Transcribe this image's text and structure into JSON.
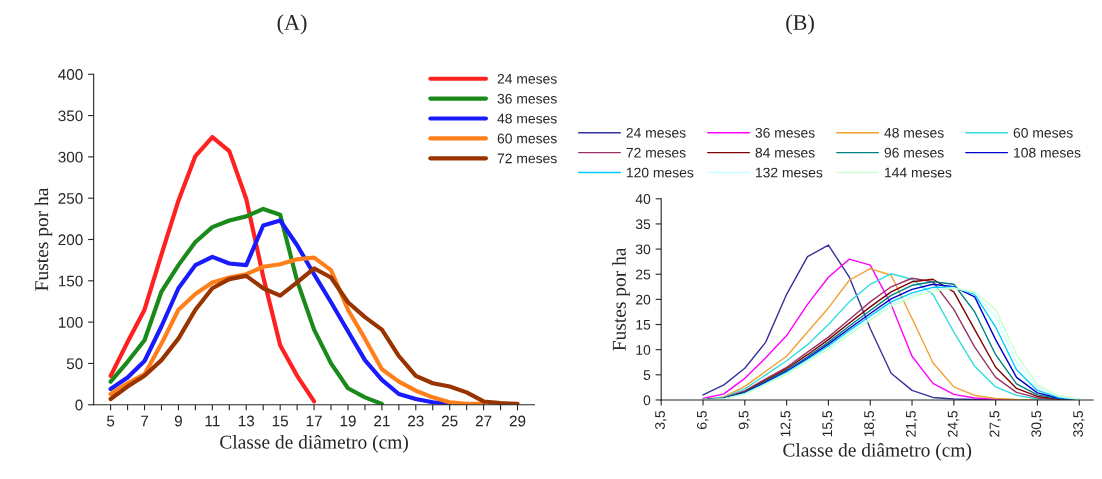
{
  "chart_data": [
    {
      "type": "line",
      "title": "(A)",
      "xlabel": "Classe de diâmetro (cm)",
      "ylabel": "Fustes por ha",
      "legend": "top right",
      "grid": false,
      "x": [
        5,
        6,
        7,
        8,
        9,
        10,
        11,
        12,
        13,
        14,
        15,
        16,
        17,
        18,
        19,
        20,
        21,
        22,
        23,
        24,
        25,
        26,
        27,
        28,
        29
      ],
      "xlim": [
        4,
        30
      ],
      "xticks": [
        5,
        {
          "value": 6,
          "label": null
        },
        7,
        {
          "value": 8,
          "label": null
        },
        9,
        {
          "value": 10,
          "label": null
        },
        11,
        {
          "value": 12,
          "label": null
        },
        13,
        {
          "value": 14,
          "label": null
        },
        15,
        {
          "value": 16,
          "label": null
        },
        17,
        {
          "value": 18,
          "label": null
        },
        19,
        {
          "value": 20,
          "label": null
        },
        21,
        {
          "value": 22,
          "label": null
        },
        23,
        {
          "value": 24,
          "label": null
        },
        25,
        {
          "value": 26,
          "label": null
        },
        27,
        {
          "value": 28,
          "label": null
        },
        29
      ],
      "ylim": [
        0,
        400
      ],
      "yticks": [
        0,
        50,
        100,
        150,
        200,
        250,
        300,
        350,
        400
      ],
      "series": [
        {
          "name": "24 meses",
          "color": "#ff2020",
          "values": [
            35,
            76,
            115,
            182,
            247,
            301,
            324,
            307,
            249,
            155,
            72,
            35,
            4,
            null,
            null,
            null,
            null,
            null,
            null,
            null,
            null,
            null,
            null,
            null,
            null
          ]
        },
        {
          "name": "36 meses",
          "color": "#1a8a1a",
          "values": [
            28,
            52,
            78,
            137,
            169,
            197,
            215,
            223,
            228,
            237,
            230,
            150,
            91,
            50,
            20,
            9,
            1,
            null,
            null,
            null,
            null,
            null,
            null,
            null,
            null
          ]
        },
        {
          "name": "48 meses",
          "color": "#1a1aff",
          "values": [
            19,
            33,
            53,
            95,
            141,
            169,
            179,
            171,
            169,
            217,
            223,
            193,
            158,
            124,
            89,
            54,
            30,
            13,
            7,
            3,
            1,
            null,
            null,
            null,
            null
          ]
        },
        {
          "name": "60 meses",
          "color": "#ff7f1a",
          "values": [
            13,
            26,
            37,
            74,
            115,
            134,
            148,
            154,
            158,
            167,
            170,
            176,
            178,
            163,
            115,
            80,
            43,
            28,
            17,
            9,
            3,
            1,
            1,
            null,
            null
          ]
        },
        {
          "name": "72 meses",
          "color": "#993300",
          "values": [
            7,
            22,
            35,
            54,
            80,
            115,
            141,
            152,
            156,
            141,
            132,
            148,
            165,
            154,
            124,
            106,
            91,
            59,
            35,
            26,
            22,
            15,
            4,
            2,
            1
          ]
        }
      ]
    },
    {
      "type": "line",
      "title": "(B)",
      "xlabel": "Classe de diâmetro (cm)",
      "ylabel": "Fustes por ha",
      "legend": "top",
      "grid": false,
      "x": [
        6.5,
        8,
        9.5,
        11,
        12.5,
        14,
        15.5,
        17,
        18.5,
        20,
        21.5,
        23,
        24.5,
        26,
        27.5,
        29,
        30.5,
        32,
        33.5
      ],
      "xlim": [
        3.5,
        34.5
      ],
      "xticks": [
        {
          "value": 3.5,
          "label": "3,5"
        },
        {
          "value": 6.5,
          "label": "6,5"
        },
        {
          "value": 9.5,
          "label": "9,5"
        },
        {
          "value": 12.5,
          "label": "12,5"
        },
        {
          "value": 15.5,
          "label": "15,5"
        },
        {
          "value": 18.5,
          "label": "18,5"
        },
        {
          "value": 21.5,
          "label": "21,5"
        },
        {
          "value": 24.5,
          "label": "24,5"
        },
        {
          "value": 27.5,
          "label": "27,5"
        },
        {
          "value": 30.5,
          "label": "30,5"
        },
        {
          "value": 33.5,
          "label": "33,5"
        }
      ],
      "ylim": [
        0,
        40
      ],
      "yticks": [
        0,
        5,
        10,
        15,
        20,
        25,
        30,
        35,
        40
      ],
      "series": [
        {
          "name": "24 meses",
          "color": "#333399",
          "values": [
            1.0,
            3.0,
            6.3,
            11.5,
            21,
            28.5,
            30.8,
            24.4,
            14.2,
            5.3,
            1.9,
            0.5,
            0.2,
            0.1,
            0,
            0,
            0,
            0,
            0
          ]
        },
        {
          "name": "36 meses",
          "color": "#ff00ff",
          "values": [
            0.3,
            1.2,
            4.3,
            8.4,
            12.8,
            19,
            24.4,
            28,
            26.8,
            19,
            8.7,
            3.3,
            1.1,
            0.4,
            0.1,
            0,
            null,
            null,
            null
          ]
        },
        {
          "name": "48 meses",
          "color": "#f0a030",
          "values": [
            0.1,
            0.6,
            2.7,
            5.7,
            8.7,
            13.5,
            18.3,
            23.8,
            26.1,
            24.8,
            16.2,
            7.4,
            2.6,
            0.9,
            0.3,
            0.1,
            0,
            null,
            null
          ]
        },
        {
          "name": "60 meses",
          "color": "#33dddd",
          "values": [
            0.1,
            0.5,
            2.2,
            5,
            7.8,
            11,
            15,
            19.5,
            23,
            25.1,
            24,
            21,
            13.5,
            6.7,
            2.6,
            0.9,
            0.2,
            0,
            0
          ]
        },
        {
          "name": "72 meses",
          "color": "#993366",
          "values": [
            0,
            0.4,
            1.8,
            4.2,
            6.5,
            9.5,
            12.5,
            16,
            19.5,
            22.5,
            24.2,
            23.5,
            18,
            10.5,
            4.5,
            1.5,
            0.4,
            0.1,
            0
          ]
        },
        {
          "name": "84 meses",
          "color": "#800000",
          "values": [
            0,
            0.3,
            1.6,
            3.9,
            6.2,
            9,
            12,
            15.3,
            18.5,
            21.5,
            23.5,
            24,
            21.5,
            14,
            6.5,
            2.3,
            0.7,
            0.2,
            0
          ]
        },
        {
          "name": "96 meses",
          "color": "#008080",
          "values": [
            0,
            0.3,
            1.5,
            3.7,
            5.9,
            8.6,
            11.5,
            14.7,
            17.8,
            20.8,
            22.8,
            23.5,
            23,
            17.5,
            9,
            3.2,
            1,
            0.3,
            0
          ]
        },
        {
          "name": "108 meses",
          "color": "#0000cc",
          "values": [
            0,
            0.3,
            1.4,
            3.5,
            5.7,
            8.3,
            11.1,
            14.2,
            17.2,
            20.1,
            22,
            23,
            22.5,
            20.5,
            12,
            4.5,
            1.4,
            0.4,
            0
          ]
        },
        {
          "name": "120 meses",
          "color": "#00ccff",
          "values": [
            0,
            0.2,
            1.3,
            3.3,
            5.5,
            8,
            10.7,
            13.8,
            16.7,
            19.5,
            21.3,
            22.4,
            22.4,
            21,
            14.5,
            6,
            1.9,
            0.5,
            0.1
          ]
        },
        {
          "name": "132 meses",
          "color": "#ccffff",
          "values": [
            0,
            0.2,
            1.2,
            3.2,
            5.3,
            7.8,
            10.4,
            13.4,
            16.3,
            19,
            20.8,
            22,
            22.3,
            21.3,
            16.5,
            7.5,
            2.4,
            0.7,
            0.1
          ]
        },
        {
          "name": "144 meses",
          "color": "#ccffcc",
          "values": [
            0,
            0.2,
            1.1,
            3.1,
            5.1,
            7.6,
            10.1,
            13,
            15.9,
            18.6,
            20.4,
            21.6,
            22.2,
            21.5,
            18,
            9,
            3,
            0.9,
            0.2
          ]
        }
      ]
    }
  ]
}
